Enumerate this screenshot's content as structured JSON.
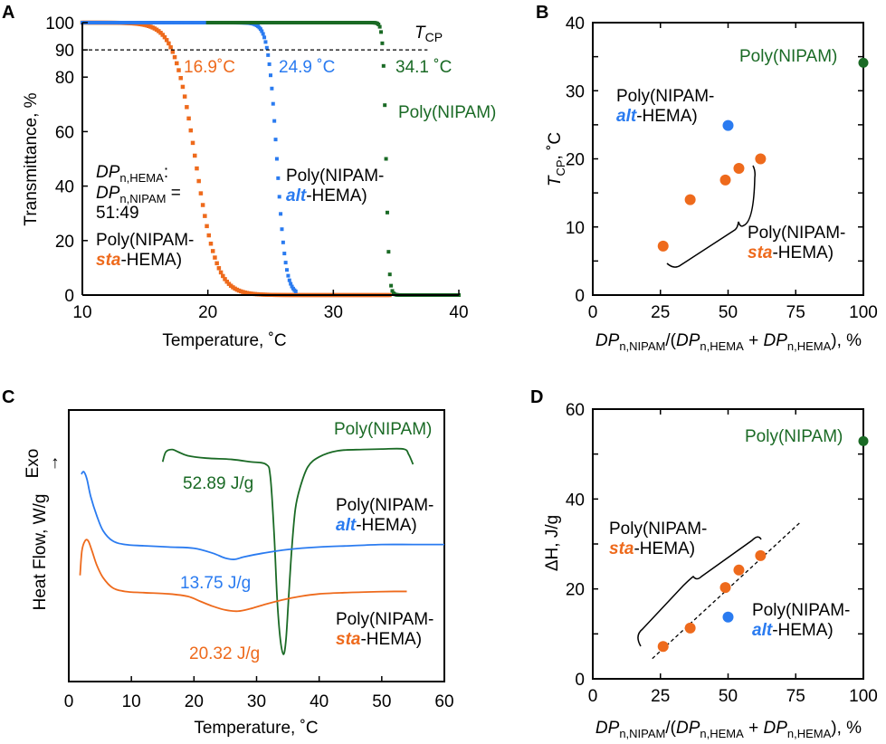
{
  "colors": {
    "sta": "#ee6a1c",
    "alt": "#2a7bf0",
    "nipam": "#1a6a25",
    "black": "#000000"
  },
  "chart_data": [
    {
      "panel": "A",
      "type": "scatter",
      "xlabel": "Temperature, ˚C",
      "ylabel": "Transmittance, %",
      "xlim": [
        10,
        40
      ],
      "ylim": [
        0,
        100
      ],
      "xticks": [
        "10",
        "20",
        "30",
        "40"
      ],
      "yticks": [
        "0",
        "20",
        "40",
        "60",
        "80",
        "90",
        "100"
      ],
      "reference_line": {
        "y": 90,
        "style": "dashed",
        "label": "TCP"
      },
      "series": [
        {
          "name": "Poly(NIPAM-sta-HEMA)",
          "color_key": "sta",
          "tcp": 16.9,
          "sigmoid": {
            "mid": 19.0,
            "width": 0.85
          },
          "x_range": [
            10,
            34.5
          ]
        },
        {
          "name": "Poly(NIPAM-alt-HEMA)",
          "color_key": "alt",
          "tcp": 24.9,
          "sigmoid": {
            "mid": 25.5,
            "width": 0.35
          },
          "x_range": [
            10,
            27
          ]
        },
        {
          "name": "Poly(NIPAM)",
          "color_key": "nipam",
          "tcp": 34.1,
          "sigmoid": {
            "mid": 34.2,
            "width": 0.12
          },
          "x_range": [
            20,
            40
          ]
        }
      ],
      "annotations": {
        "tcp_label": "T",
        "tcp_sub": "CP",
        "sta_tcp": "16.9˚C",
        "alt_tcp": "24.9 ˚C",
        "nipam_tcp": "34.1 ˚C",
        "ratio_line1_main": "DP",
        "ratio_line1_sub": "n,HEMA",
        "ratio_line1_tail": ":",
        "ratio_line2_main": "DP",
        "ratio_line2_sub": "n,NIPAM",
        "ratio_line2_tail": " =",
        "ratio_line3": "51:49",
        "sta_label_1": "Poly(NIPAM-",
        "sta_label_2a": "sta",
        "sta_label_2b": "-HEMA)",
        "alt_label_1": "Poly(NIPAM-",
        "alt_label_2a": "alt",
        "alt_label_2b": "-HEMA)",
        "nipam_label": "Poly(NIPAM)"
      }
    },
    {
      "panel": "B",
      "type": "scatter",
      "xlabel_parts": [
        "DP",
        "n,NIPAM",
        "/(",
        "DP",
        "n,HEMA",
        " + ",
        "DP",
        "n,HEMA",
        "), %"
      ],
      "ylabel_main": "T",
      "ylabel_sub": "CP",
      "ylabel_tail": ", ˚C",
      "xlim": [
        0,
        100
      ],
      "ylim": [
        0,
        40
      ],
      "xticks": [
        "0",
        "25",
        "50",
        "75",
        "100"
      ],
      "yticks": [
        "0",
        "10",
        "20",
        "30",
        "40"
      ],
      "series": [
        {
          "name": "Poly(NIPAM-sta-HEMA)",
          "color_key": "sta",
          "x": [
            26,
            36,
            49,
            54,
            62
          ],
          "y": [
            7.2,
            14.0,
            16.9,
            18.6,
            20.0
          ]
        },
        {
          "name": "Poly(NIPAM-alt-HEMA)",
          "color_key": "alt",
          "x": [
            50
          ],
          "y": [
            24.9
          ]
        },
        {
          "name": "Poly(NIPAM)",
          "color_key": "nipam",
          "x": [
            100
          ],
          "y": [
            34.1
          ]
        }
      ],
      "annotations": {
        "nipam_label": "Poly(NIPAM)",
        "alt_label_1": "Poly(NIPAM-",
        "alt_label_2a": "alt",
        "alt_label_2b": "-HEMA)",
        "sta_label_1": "Poly(NIPAM-",
        "sta_label_2a": "sta",
        "sta_label_2b": "-HEMA)"
      }
    },
    {
      "panel": "C",
      "type": "line",
      "xlabel": "Temperature, ˚C",
      "ylabel": "Heat Flow, W/g",
      "exo_label": "Exo",
      "exo_arrow": "→",
      "xlim": [
        0,
        60
      ],
      "xticks": [
        "0",
        "10",
        "20",
        "30",
        "40",
        "50",
        "60"
      ],
      "series": [
        {
          "name": "Poly(NIPAM)",
          "color_key": "nipam",
          "enthalpy": "52.89 J/g",
          "x": [
            15,
            15.5,
            16.5,
            17.5,
            19,
            22,
            26,
            29,
            31.5,
            32.2,
            32.8,
            33.3,
            33.8,
            34.3,
            34.7,
            35.1,
            35.6,
            36.2,
            37,
            38.2,
            40,
            43,
            47,
            50,
            53.5,
            54.3,
            55
          ],
          "y": [
            0.74,
            0.78,
            0.79,
            0.78,
            0.765,
            0.755,
            0.75,
            0.74,
            0.73,
            0.68,
            0.45,
            0.18,
            0.02,
            -0.04,
            0.02,
            0.18,
            0.38,
            0.55,
            0.64,
            0.72,
            0.76,
            0.785,
            0.79,
            0.792,
            0.792,
            0.77,
            0.73
          ]
        },
        {
          "name": "Poly(NIPAM-alt-HEMA)",
          "color_key": "alt",
          "enthalpy": "13.75 J/g",
          "x": [
            2,
            2.4,
            2.9,
            3.5,
            4.5,
            5.5,
            7,
            9,
            12,
            16,
            20,
            23,
            25,
            26.5,
            28,
            31,
            35,
            40,
            45,
            50,
            55,
            60
          ],
          "y": [
            0.69,
            0.7,
            0.67,
            0.6,
            0.52,
            0.46,
            0.42,
            0.405,
            0.4,
            0.395,
            0.39,
            0.37,
            0.35,
            0.345,
            0.355,
            0.37,
            0.385,
            0.395,
            0.4,
            0.405,
            0.405,
            0.405
          ]
        },
        {
          "name": "Poly(NIPAM-sta-HEMA)",
          "color_key": "sta",
          "enthalpy": "20.32 J/g",
          "x": [
            1.8,
            2.1,
            2.6,
            3.1,
            3.7,
            4.5,
            5.5,
            7,
            9,
            12,
            16,
            19,
            21,
            23,
            25,
            27,
            29,
            31,
            34,
            37,
            40,
            44,
            48,
            52,
            54
          ],
          "y": [
            0.28,
            0.38,
            0.42,
            0.42,
            0.38,
            0.32,
            0.27,
            0.23,
            0.215,
            0.21,
            0.205,
            0.195,
            0.175,
            0.155,
            0.14,
            0.135,
            0.145,
            0.16,
            0.18,
            0.195,
            0.205,
            0.21,
            0.213,
            0.215,
            0.215
          ]
        }
      ],
      "annotations": {
        "nipam_label": "Poly(NIPAM)",
        "alt_label_1": "Poly(NIPAM-",
        "alt_label_2a": "alt",
        "alt_label_2b": "-HEMA)",
        "sta_label_1": "Poly(NIPAM-",
        "sta_label_2a": "sta",
        "sta_label_2b": "-HEMA)"
      }
    },
    {
      "panel": "D",
      "type": "scatter",
      "xlabel_parts": [
        "DP",
        "n,NIPAM",
        "/(",
        "DP",
        "n,HEMA",
        " + ",
        "DP",
        "n,HEMA",
        "), %"
      ],
      "ylabel": "ΔH, J/g",
      "xlim": [
        0,
        100
      ],
      "ylim": [
        0,
        60
      ],
      "xticks": [
        "0",
        "25",
        "50",
        "75",
        "100"
      ],
      "yticks": [
        "0",
        "20",
        "40",
        "60"
      ],
      "fit_line": {
        "style": "dashed",
        "x": [
          22,
          77
        ],
        "y": [
          4.5,
          35.0
        ]
      },
      "series": [
        {
          "name": "Poly(NIPAM-sta-HEMA)",
          "color_key": "sta",
          "x": [
            26,
            36,
            49,
            54,
            62
          ],
          "y": [
            7.2,
            11.3,
            20.3,
            24.2,
            27.4
          ]
        },
        {
          "name": "Poly(NIPAM-alt-HEMA)",
          "color_key": "alt",
          "x": [
            50
          ],
          "y": [
            13.75
          ]
        },
        {
          "name": "Poly(NIPAM)",
          "color_key": "nipam",
          "x": [
            100
          ],
          "y": [
            52.89
          ]
        }
      ],
      "annotations": {
        "nipam_label": "Poly(NIPAM)",
        "alt_label_1": "Poly(NIPAM-",
        "alt_label_2a": "alt",
        "alt_label_2b": "-HEMA)",
        "sta_label_1": "Poly(NIPAM-",
        "sta_label_2a": "sta",
        "sta_label_2b": "-HEMA)"
      }
    }
  ],
  "panel_labels": [
    "A",
    "B",
    "C",
    "D"
  ]
}
